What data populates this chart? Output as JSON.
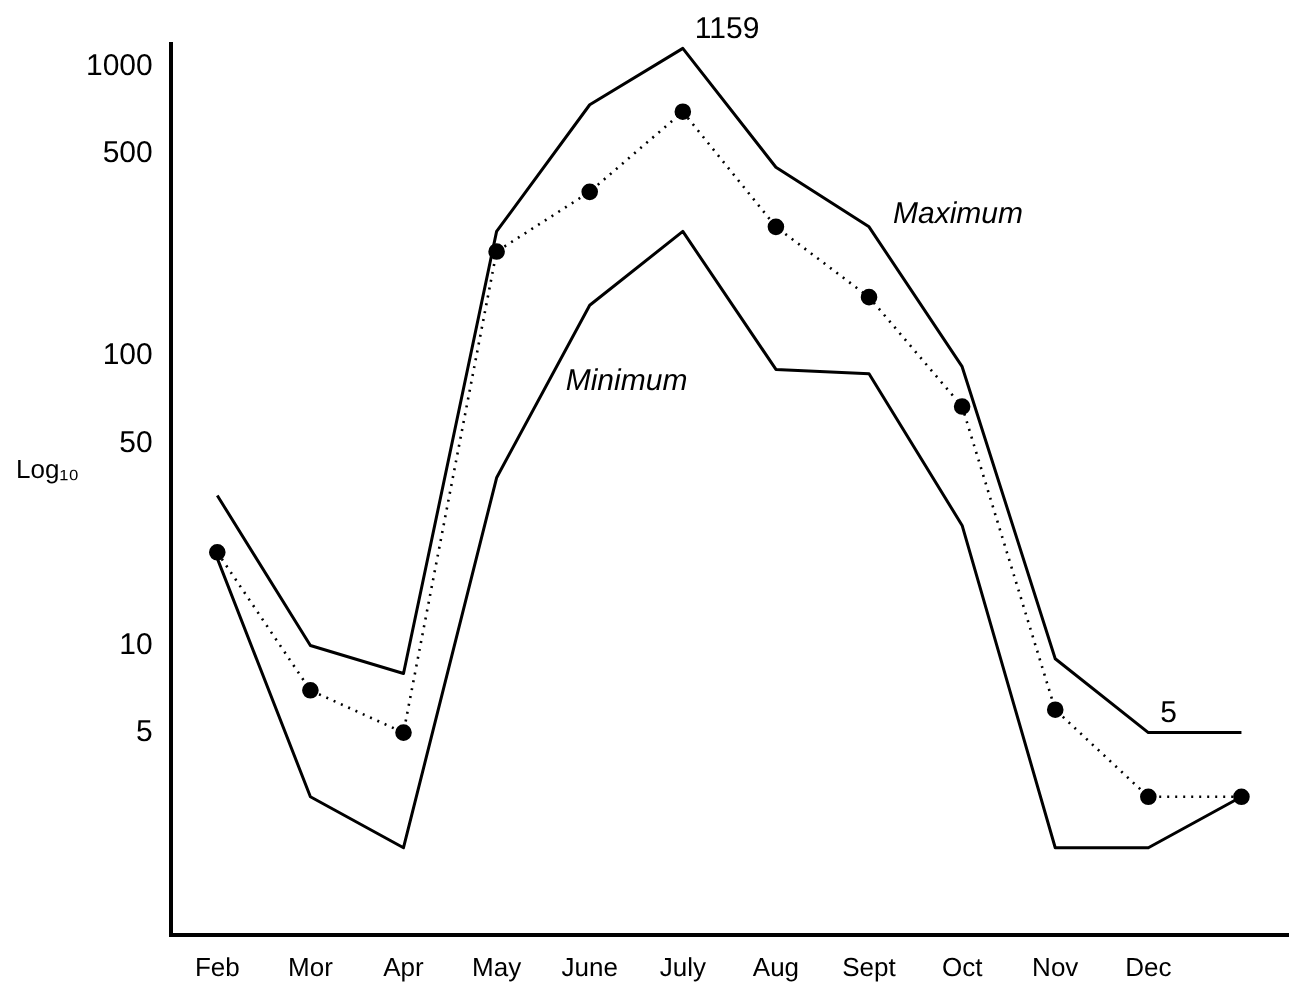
{
  "chart_data": {
    "type": "line",
    "ylabel": "Log₁₀",
    "log": true,
    "grid": false,
    "legend": false,
    "categories": [
      "Feb",
      "Mor",
      "Apr",
      "May",
      "June",
      "July",
      "Aug",
      "Sept",
      "Oct",
      "Nov",
      "Dec",
      null
    ],
    "ylim": [
      1,
      1200
    ],
    "yticks": [
      5,
      10,
      50,
      100,
      500,
      1000
    ],
    "series": [
      {
        "name": "Maximum",
        "color": "#000000",
        "line_style": "solid",
        "marker": "none",
        "values": [
          33,
          10,
          8,
          270,
          740,
          1159,
          450,
          280,
          92,
          9,
          5,
          5
        ]
      },
      {
        "color": "#000000",
        "line_style": "dotted",
        "marker": "circle",
        "values": [
          21,
          7,
          5,
          230,
          370,
          700,
          280,
          160,
          67,
          6,
          3,
          3
        ]
      },
      {
        "name": "Minimum",
        "color": "#000000",
        "line_style": "solid",
        "marker": "none",
        "values": [
          20,
          3,
          2,
          38,
          150,
          270,
          90,
          87,
          26,
          2,
          2,
          3
        ]
      }
    ],
    "annotations": [
      {
        "text": "1159",
        "x": "July",
        "y": 1159
      },
      {
        "text": "5",
        "x": "Dec",
        "y": 5
      }
    ]
  }
}
